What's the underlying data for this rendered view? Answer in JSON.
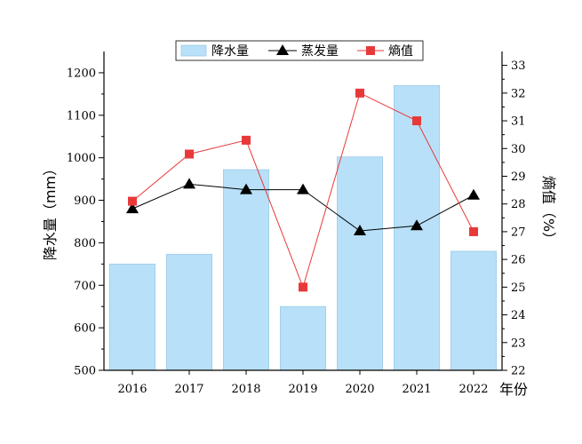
{
  "chart_data": {
    "type": "bar",
    "categories": [
      "2016",
      "2017",
      "2018",
      "2019",
      "2020",
      "2021",
      "2022"
    ],
    "xlabel": "年份",
    "left_axis": {
      "label": "降水量（mm）",
      "ylim": [
        500,
        1250
      ],
      "ticks": [
        500,
        600,
        700,
        800,
        900,
        1000,
        1100,
        1200
      ]
    },
    "right_axis": {
      "label": "熵值（%）",
      "ylim": [
        22,
        33.5
      ],
      "ticks": [
        22,
        23,
        24,
        25,
        26,
        27,
        28,
        29,
        30,
        31,
        32,
        33
      ]
    },
    "series": [
      {
        "name": "降水量",
        "type": "bar",
        "axis": "left",
        "color": "#b8e0f8",
        "values": [
          750,
          773,
          972,
          650,
          1002,
          1170,
          780
        ]
      },
      {
        "name": "蒸发量",
        "type": "line",
        "axis": "left",
        "marker": "triangle",
        "color": "#000000",
        "values": [
          880,
          938,
          925,
          925,
          828,
          840,
          912
        ]
      },
      {
        "name": "熵值",
        "type": "line",
        "axis": "right",
        "marker": "square",
        "color": "#e8393a",
        "values": [
          28.1,
          29.8,
          30.3,
          25.0,
          32.0,
          31.0,
          27.0
        ]
      }
    ],
    "legend_position": "top",
    "grid": false
  }
}
